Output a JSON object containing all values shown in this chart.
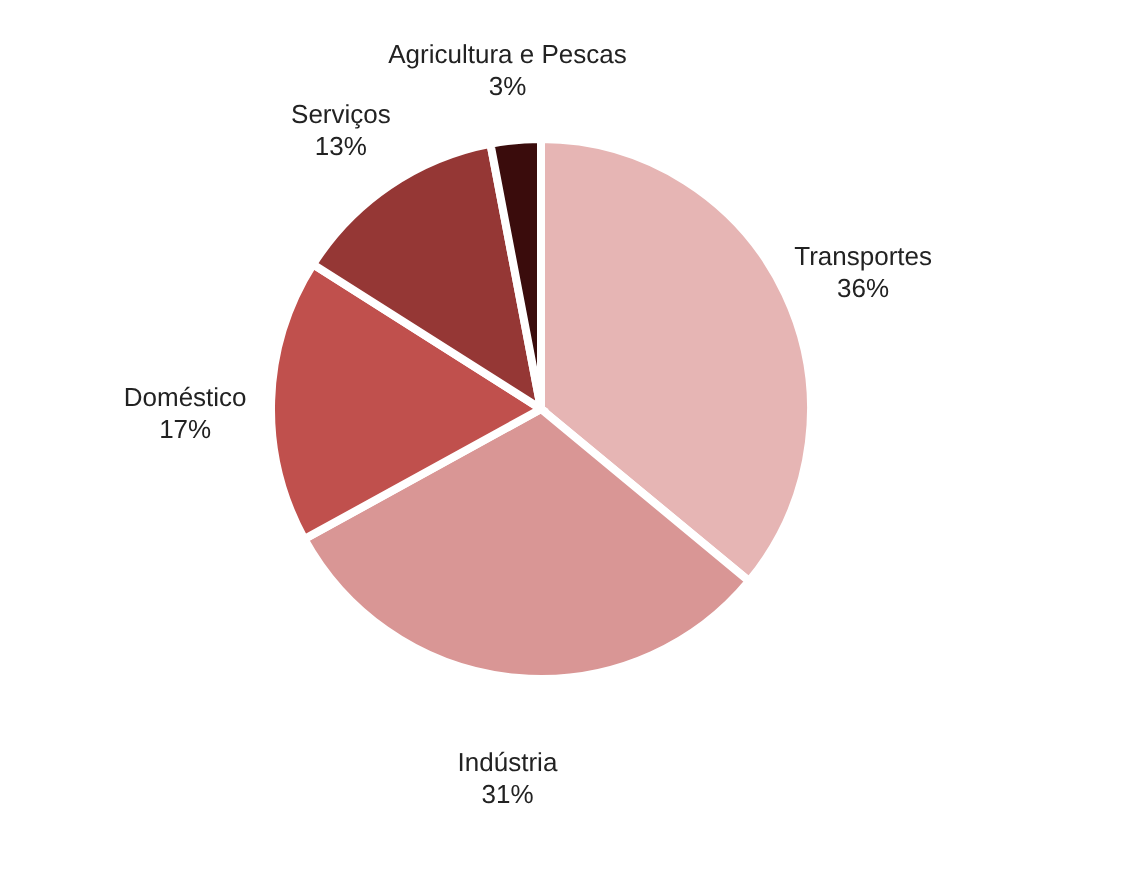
{
  "chart_data": {
    "type": "pie",
    "categories": [
      "Transportes",
      "Indústria",
      "Doméstico",
      "Serviços",
      "Agricultura e Pescas"
    ],
    "values": [
      36,
      31,
      17,
      13,
      3
    ],
    "value_labels": [
      "36%",
      "31%",
      "17%",
      "13%",
      "3%"
    ],
    "colors": [
      "#e6b5b4",
      "#d99695",
      "#c0504d",
      "#953735",
      "#3a0c0c"
    ],
    "legend": false
  }
}
